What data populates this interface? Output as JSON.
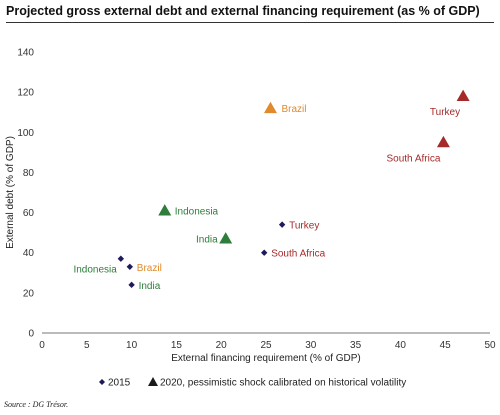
{
  "chart_data": {
    "type": "scatter",
    "title": "Projected gross external debt and external financing requirement (as % of GDP)",
    "xlabel": "External financing requirement (% of GDP)",
    "ylabel": "External debt (% of GDP)",
    "xlim": [
      0,
      50
    ],
    "ylim": [
      0,
      140
    ],
    "x_ticks": [
      0,
      5,
      10,
      15,
      20,
      25,
      30,
      35,
      40,
      45,
      50
    ],
    "y_ticks": [
      0,
      20,
      40,
      60,
      80,
      100,
      120,
      140
    ],
    "grid": false,
    "legend_position": "bottom",
    "series": [
      {
        "name": "2015",
        "marker": "diamond",
        "color": "#1f1a5c",
        "points": [
          {
            "label": "Indonesia",
            "x": 8.8,
            "y": 37,
            "color": "#2e7d3a"
          },
          {
            "label": "Brazil",
            "x": 9.8,
            "y": 33,
            "color": "#e08a2c"
          },
          {
            "label": "India",
            "x": 10.0,
            "y": 24,
            "color": "#2e7d3a"
          },
          {
            "label": "Turkey",
            "x": 26.8,
            "y": 54,
            "color": "#a52a2a"
          },
          {
            "label": "South Africa",
            "x": 24.8,
            "y": 40,
            "color": "#a52a2a"
          }
        ]
      },
      {
        "name": "2020, pessimistic shock calibrated on historical volatility",
        "marker": "triangle",
        "color": "#1a1a1a",
        "points": [
          {
            "label": "Brazil",
            "x": 25.5,
            "y": 112,
            "color": "#e08a2c"
          },
          {
            "label": "Indonesia",
            "x": 13.7,
            "y": 61,
            "color": "#2e7d3a"
          },
          {
            "label": "India",
            "x": 20.5,
            "y": 47,
            "color": "#2e7d3a"
          },
          {
            "label": "Turkey",
            "x": 47.0,
            "y": 118,
            "color": "#a52a2a"
          },
          {
            "label": "South Africa",
            "x": 44.8,
            "y": 95,
            "color": "#a52a2a"
          }
        ]
      }
    ]
  },
  "source": "Source : DG Trésor."
}
